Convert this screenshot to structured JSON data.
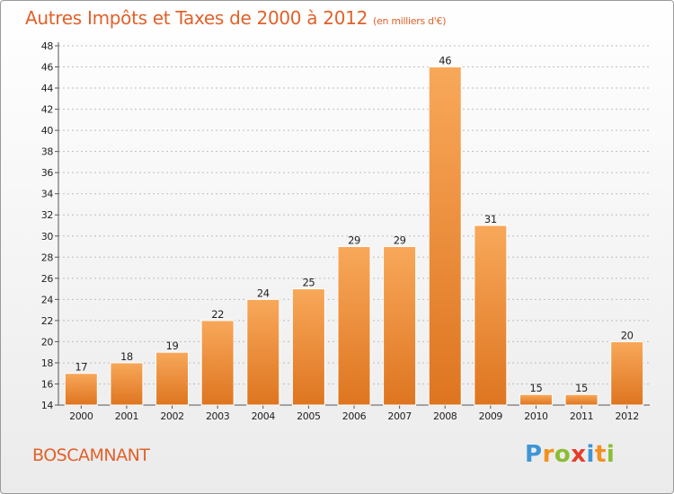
{
  "title": "Autres Impôts et Taxes de 2000 à 2012",
  "subtitle": "(en milliers d'€)",
  "commune": "BOSCAMNANT",
  "logo": {
    "letters": [
      "P",
      "r",
      "o",
      "x",
      "i",
      "t",
      "i"
    ],
    "colors": [
      "#3f95d6",
      "#f3901f",
      "#8bbd33",
      "#e53d2a",
      "#3f95d6",
      "#f3901f",
      "#8bbd33"
    ]
  },
  "colors": {
    "accent": "#e1612a",
    "bar_light": "#f8a85a",
    "bar_dark": "#de7520",
    "grid": "#bdbdbd"
  },
  "chart_data": {
    "type": "bar",
    "categories": [
      "2000",
      "2001",
      "2002",
      "2003",
      "2004",
      "2005",
      "2006",
      "2007",
      "2008",
      "2009",
      "2010",
      "2011",
      "2012"
    ],
    "values": [
      17,
      18,
      19,
      22,
      24,
      25,
      29,
      29,
      46,
      31,
      15,
      15,
      20
    ],
    "ylim": [
      14,
      48
    ],
    "yticks": [
      14,
      16,
      18,
      20,
      22,
      24,
      26,
      28,
      30,
      32,
      34,
      36,
      38,
      40,
      42,
      44,
      46,
      48
    ],
    "grid": true,
    "gridStyle": "dashed horizontal",
    "legend": "none"
  }
}
